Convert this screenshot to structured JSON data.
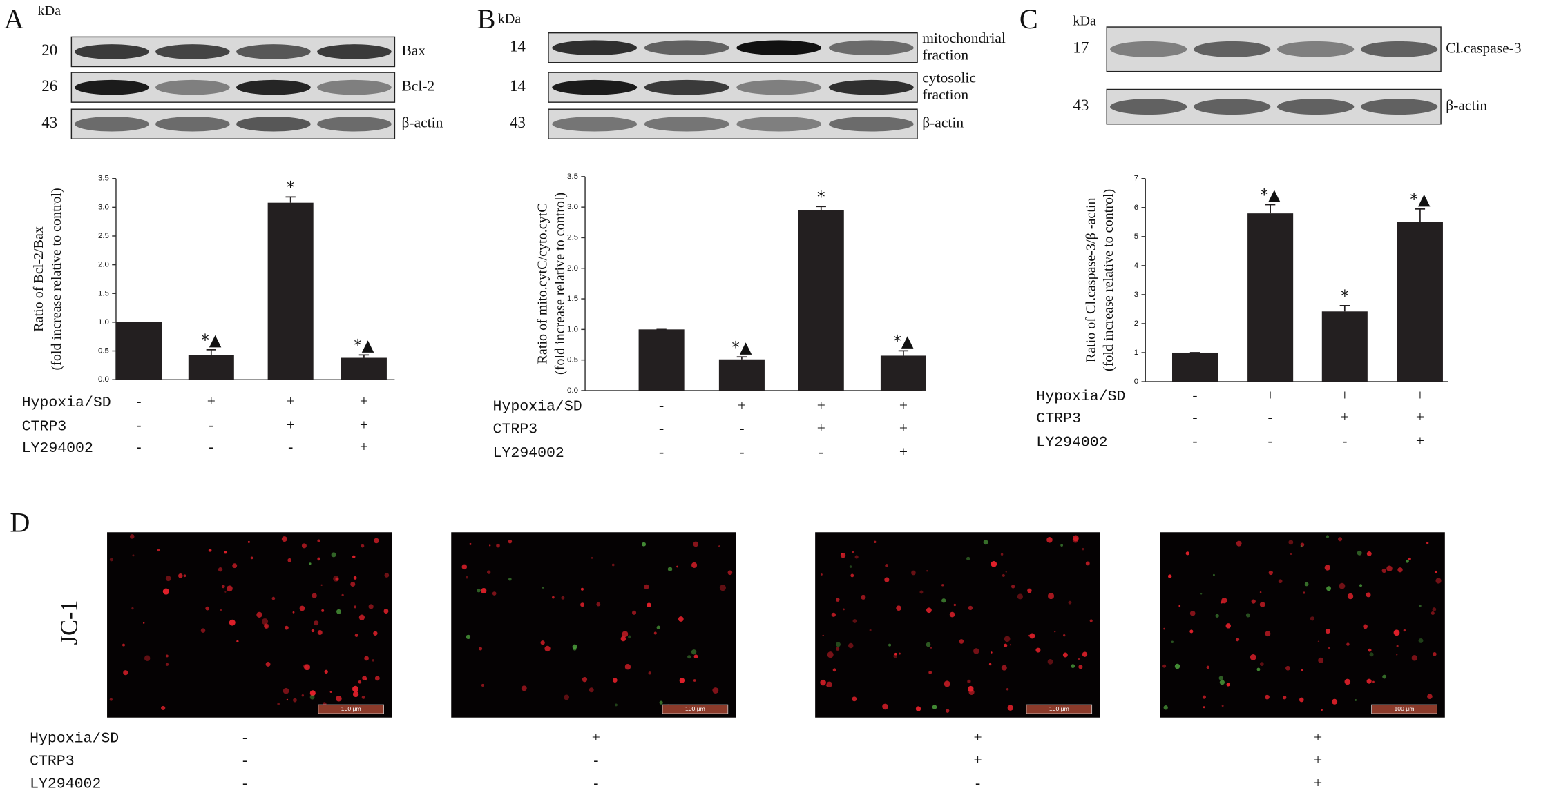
{
  "panel_labels": [
    "A",
    "B",
    "C",
    "D"
  ],
  "blots": [
    {
      "kda": "kDa",
      "rows": [
        {
          "mw": "20",
          "label": [
            "Bax"
          ]
        },
        {
          "mw": "26",
          "label": [
            "Bcl-2"
          ]
        },
        {
          "mw": "43",
          "label": [
            "β-actin"
          ]
        }
      ]
    },
    {
      "kda": "kDa",
      "rows": [
        {
          "mw": "14",
          "label": [
            "mitochondrial",
            "fraction"
          ]
        },
        {
          "mw": "14",
          "label": [
            "cytosolic",
            "fraction"
          ]
        },
        {
          "mw": "43",
          "label": [
            "β-actin"
          ]
        }
      ]
    },
    {
      "kda": "kDa",
      "rows": [
        {
          "mw": "17",
          "label": [
            "Cl.caspase-3"
          ]
        },
        {
          "mw": "43",
          "label": [
            "β-actin"
          ]
        }
      ]
    }
  ],
  "chart_data": [
    {
      "type": "bar",
      "y_label": [
        "Ratio of Bcl-2/Bax",
        "(fold increase relative to control)"
      ],
      "values": [
        1.0,
        0.43,
        3.08,
        0.38
      ],
      "errors": [
        0,
        0.09,
        0.1,
        0.05
      ],
      "annotations": [
        null,
        "*▲",
        "*",
        "*▲"
      ],
      "color": "#231f20",
      "ylim": [
        0,
        3.5
      ],
      "yticks": [
        {
          "value": 0,
          "label": "0.0"
        },
        0.5,
        {
          "value": 1,
          "label": "1.0"
        },
        1.5,
        {
          "value": 2,
          "label": "2.0"
        },
        2.5,
        {
          "value": 3,
          "label": "3.0"
        },
        3.5
      ],
      "treatments": [
        {
          "name": "Hypoxia/SD",
          "marks": [
            "-",
            "+",
            "+",
            "+"
          ]
        },
        {
          "name": "CTRP3",
          "marks": [
            "-",
            "-",
            "+",
            "+"
          ]
        },
        {
          "name": "LY294002",
          "marks": [
            "-",
            "-",
            "-",
            "+"
          ]
        }
      ]
    },
    {
      "type": "bar",
      "y_label": [
        "Ratio of mito.cytC/cyto.cytC",
        "(fold increase relative to control)"
      ],
      "values": [
        1.0,
        0.51,
        2.95,
        0.57
      ],
      "errors": [
        0,
        0.04,
        0.06,
        0.08
      ],
      "annotations": [
        null,
        "*▲",
        "*",
        "*▲"
      ],
      "color": "#231f20",
      "ylim": [
        0,
        3.5
      ],
      "yticks": [
        {
          "value": 0,
          "label": "0.0"
        },
        0.5,
        {
          "value": 1,
          "label": "1.0"
        },
        1.5,
        {
          "value": 2,
          "label": "2.0"
        },
        2.5,
        {
          "value": 3,
          "label": "3.0"
        },
        3.5
      ],
      "treatments": [
        {
          "name": "Hypoxia/SD",
          "marks": [
            "-",
            "+",
            "+",
            "+"
          ]
        },
        {
          "name": "CTRP3",
          "marks": [
            "-",
            "-",
            "+",
            "+"
          ]
        },
        {
          "name": "LY294002",
          "marks": [
            "-",
            "-",
            "-",
            "+"
          ]
        }
      ]
    },
    {
      "type": "bar",
      "y_label": [
        "Ratio of Cl.caspase-3/β -actin",
        "(fold increase relative to control)"
      ],
      "values": [
        1.0,
        5.8,
        2.42,
        5.5
      ],
      "errors": [
        0,
        0.3,
        0.2,
        0.45
      ],
      "annotations": [
        null,
        "*▲",
        "*",
        "*▲"
      ],
      "color": "#231f20",
      "ylim": [
        0,
        7
      ],
      "yticks": [
        0,
        1,
        2,
        3,
        4,
        5,
        6,
        7
      ],
      "treatments": [
        {
          "name": "Hypoxia/SD",
          "marks": [
            "-",
            "+",
            "+",
            "+"
          ]
        },
        {
          "name": "CTRP3",
          "marks": [
            "-",
            "-",
            "+",
            "+"
          ]
        },
        {
          "name": "LY294002",
          "marks": [
            "-",
            "-",
            "-",
            "+"
          ]
        }
      ]
    }
  ],
  "jc1": {
    "label": "JC-1",
    "scale_bar": "100 μm",
    "treatments": [
      {
        "name": "Hypoxia/SD",
        "marks": [
          "-",
          "+",
          "+",
          "+"
        ]
      },
      {
        "name": "CTRP3",
        "marks": [
          "-",
          "-",
          "+",
          "+"
        ]
      },
      {
        "name": "LY294002",
        "marks": [
          "-",
          "-",
          "-",
          "+"
        ]
      }
    ]
  }
}
